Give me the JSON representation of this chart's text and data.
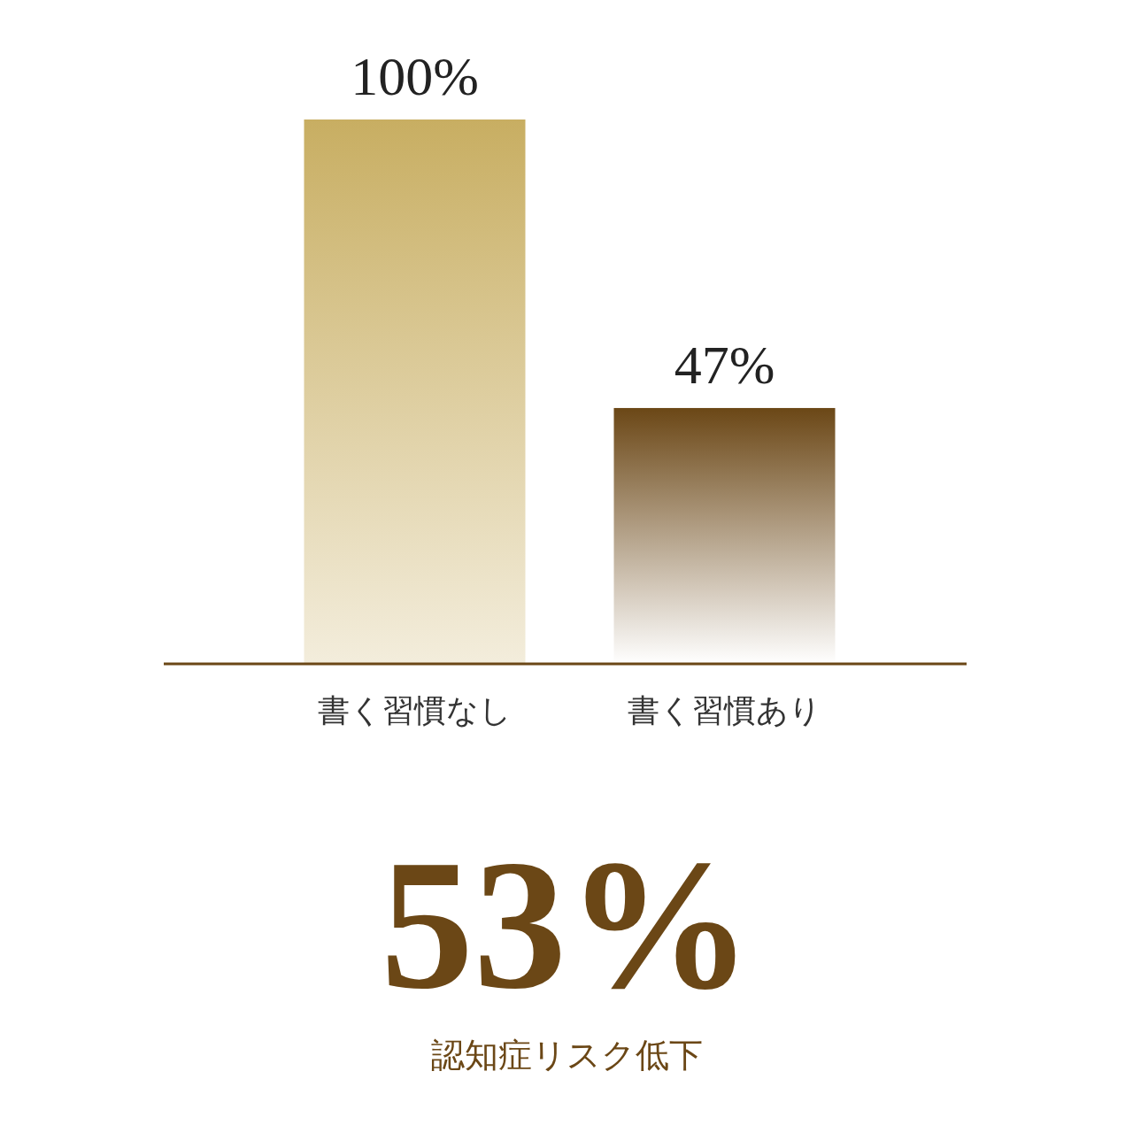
{
  "chart_data": {
    "type": "bar",
    "categories": [
      "書く習慣なし",
      "書く習慣あり"
    ],
    "values": [
      100,
      47
    ],
    "colors": [
      "#c8ae62",
      "#6b4716"
    ],
    "value_labels": [
      "100%",
      "47%"
    ],
    "annotations": [
      "53%",
      "認知症リスク低下"
    ]
  }
}
